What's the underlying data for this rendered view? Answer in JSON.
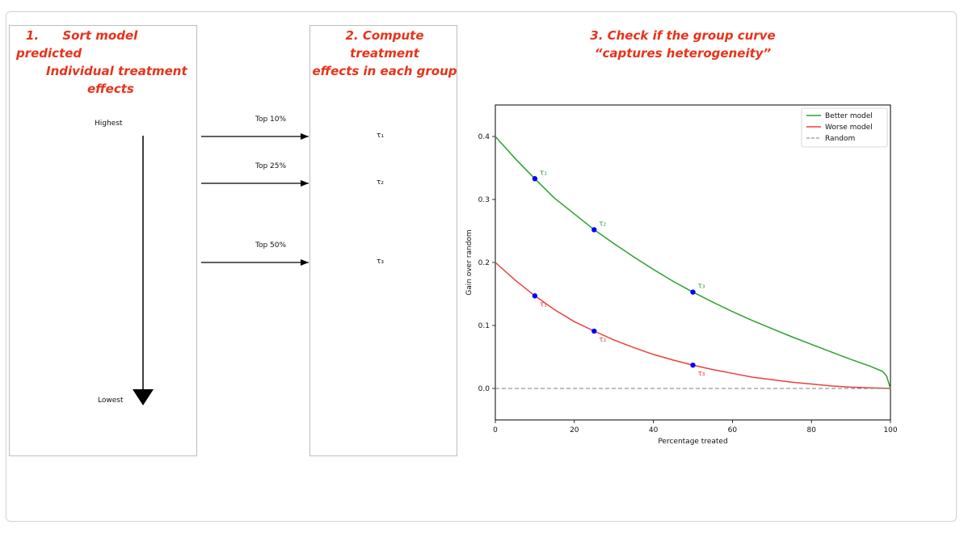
{
  "step1": {
    "number": "1.",
    "line1": "Sort model predicted",
    "line2": "Individual treatment",
    "line3": "effects"
  },
  "step2": {
    "line1": "2. Compute treatment",
    "line2": "effects in each group"
  },
  "step3": {
    "line1": "3. Check if the group curve",
    "line2": "“captures heterogeneity”"
  },
  "ranking": {
    "highest": "Highest",
    "lowest": "Lowest"
  },
  "groups": [
    {
      "label": "Top 10%",
      "tau": "τ₁"
    },
    {
      "label": "Top 25%",
      "tau": "τ₂"
    },
    {
      "label": "Top 50%",
      "tau": "τ₃"
    }
  ],
  "colors": {
    "title_red": "#e8321a",
    "better": "#2ca02c",
    "worse": "#e8413c",
    "random": "#7f7f7f",
    "marker": "#0000ff"
  },
  "chart_data": {
    "type": "line",
    "xlabel": "Percentage treated",
    "ylabel": "Gain over random",
    "xlim": [
      0,
      100
    ],
    "ylim": [
      -0.05,
      0.45
    ],
    "xticks": [
      0,
      20,
      40,
      60,
      80,
      100
    ],
    "yticks": [
      0.0,
      0.1,
      0.2,
      0.3,
      0.4
    ],
    "legend_position": "top-right",
    "series": [
      {
        "name": "Better model",
        "color": "#2ca02c",
        "style": "solid",
        "x": [
          0,
          5,
          10,
          15,
          20,
          25,
          30,
          35,
          40,
          45,
          50,
          55,
          60,
          65,
          70,
          75,
          80,
          85,
          90,
          95,
          98,
          99,
          100
        ],
        "y": [
          0.4,
          0.365,
          0.333,
          0.302,
          0.277,
          0.252,
          0.23,
          0.209,
          0.189,
          0.17,
          0.153,
          0.137,
          0.122,
          0.108,
          0.095,
          0.082,
          0.07,
          0.058,
          0.046,
          0.035,
          0.027,
          0.02,
          0.0
        ]
      },
      {
        "name": "Worse model",
        "color": "#e8413c",
        "style": "solid",
        "x": [
          0,
          5,
          10,
          15,
          20,
          25,
          30,
          35,
          40,
          45,
          50,
          55,
          60,
          65,
          70,
          75,
          80,
          85,
          90,
          95,
          100
        ],
        "y": [
          0.2,
          0.172,
          0.147,
          0.125,
          0.106,
          0.091,
          0.077,
          0.065,
          0.054,
          0.045,
          0.037,
          0.03,
          0.024,
          0.018,
          0.014,
          0.01,
          0.007,
          0.004,
          0.002,
          0.001,
          0.0
        ]
      },
      {
        "name": "Random",
        "color": "#7f7f7f",
        "style": "dashed",
        "x": [
          0,
          100
        ],
        "y": [
          0.0,
          0.0
        ]
      }
    ],
    "markers": [
      {
        "series": "Better model",
        "x": 10,
        "y": 0.333,
        "label": "τ₁"
      },
      {
        "series": "Better model",
        "x": 25,
        "y": 0.252,
        "label": "τ₂"
      },
      {
        "series": "Better model",
        "x": 50,
        "y": 0.153,
        "label": "τ₃"
      },
      {
        "series": "Worse model",
        "x": 10,
        "y": 0.147,
        "label": "τ₁"
      },
      {
        "series": "Worse model",
        "x": 25,
        "y": 0.091,
        "label": "τ₂"
      },
      {
        "series": "Worse model",
        "x": 50,
        "y": 0.037,
        "label": "τ₃"
      }
    ]
  }
}
